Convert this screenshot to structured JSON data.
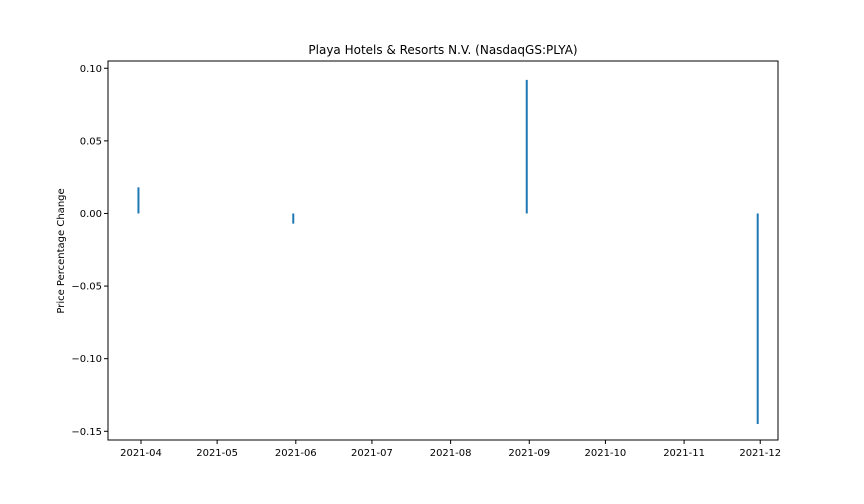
{
  "chart_data": {
    "type": "bar",
    "title": "Playa Hotels & Resorts N.V. (NasdaqGS:PLYA)",
    "xlabel": "",
    "ylabel": "Price Percentage Change",
    "x_ticks": [
      "2021-04",
      "2021-05",
      "2021-06",
      "2021-07",
      "2021-08",
      "2021-09",
      "2021-10",
      "2021-11",
      "2021-12"
    ],
    "y_ticks": [
      "0.10",
      "0.05",
      "0.00",
      "−0.05",
      "−0.10",
      "−0.15"
    ],
    "y_tick_values": [
      0.1,
      0.05,
      0.0,
      -0.05,
      -0.1,
      -0.15
    ],
    "xlim": [
      "2021-03-19",
      "2021-12-08"
    ],
    "ylim": [
      -0.156,
      0.105
    ],
    "grid": false,
    "points": [
      {
        "date": "2021-03-31",
        "value": 0.018
      },
      {
        "date": "2021-05-31",
        "value": -0.007
      },
      {
        "date": "2021-08-31",
        "value": 0.092
      },
      {
        "date": "2021-11-30",
        "value": -0.145
      }
    ],
    "bar_color": "#1f77b4"
  }
}
